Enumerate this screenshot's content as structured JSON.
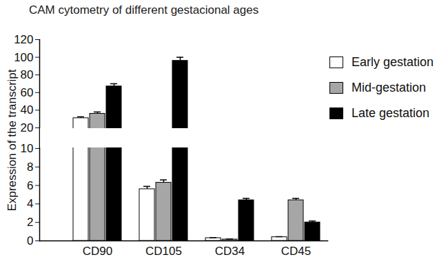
{
  "chart_data": {
    "type": "bar",
    "title": "CAM cytometry of different gestacional ages",
    "y_label": "Expression of the transcript",
    "categories": [
      "CD90",
      "CD105",
      "CD34",
      "CD45"
    ],
    "series": [
      {
        "name": "Early gestation",
        "color": "#ffffff",
        "values": [
          31,
          5.6,
          0.3,
          0.4
        ],
        "errors": [
          1.5,
          0.3,
          0.05,
          0.05
        ]
      },
      {
        "name": "Mid-gestation",
        "color": "#a6a6a6",
        "values": [
          36,
          6.3,
          0.15,
          4.4
        ],
        "errors": [
          2,
          0.3,
          0.05,
          0.2
        ]
      },
      {
        "name": "Late gestation",
        "color": "#000000",
        "values": [
          67,
          96,
          4.4,
          2.0
        ],
        "errors": [
          3,
          4,
          0.2,
          0.15
        ]
      }
    ],
    "ylim": [
      0,
      120
    ],
    "yticks": [
      0,
      2,
      4,
      6,
      8,
      10,
      20,
      40,
      60,
      80,
      100,
      120
    ],
    "ybreak": [
      10,
      20
    ],
    "grid": false,
    "legend": "right"
  }
}
